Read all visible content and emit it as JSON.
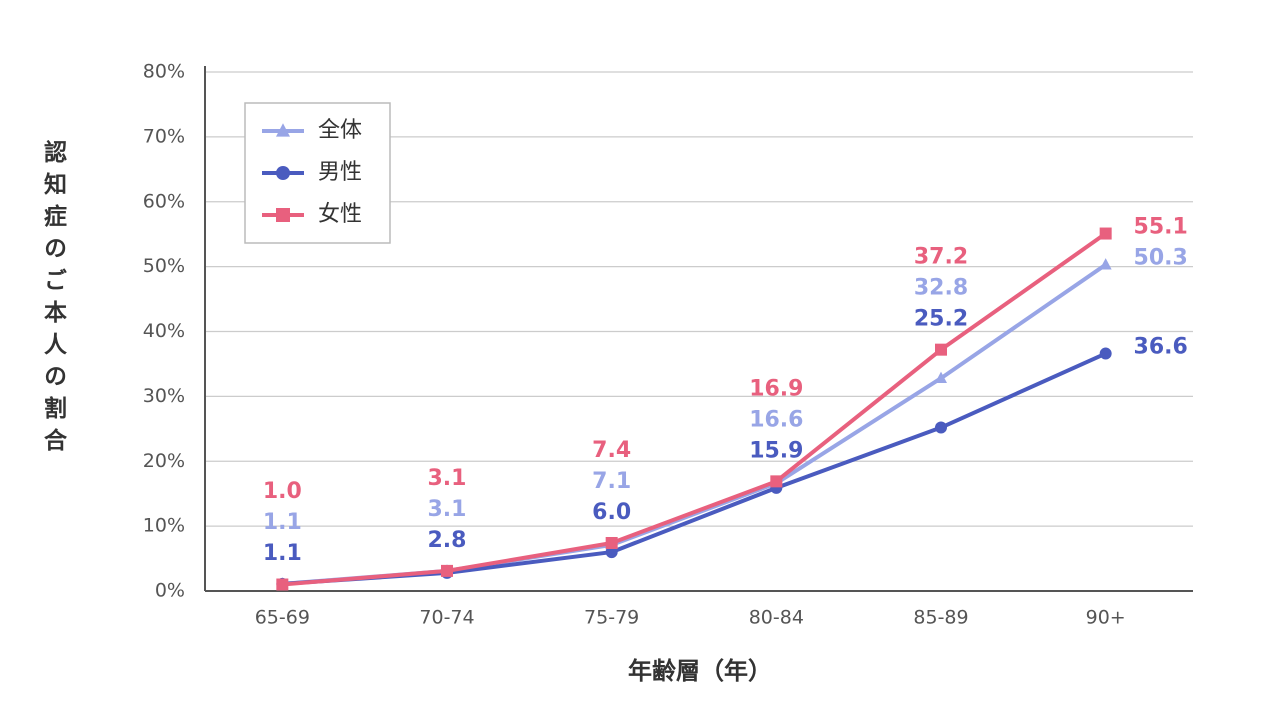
{
  "chart_data": {
    "type": "line",
    "y_label": "認知症のご本人の割合",
    "x_label": "年齢層（年）",
    "categories": [
      "65-69",
      "70-74",
      "75-79",
      "80-84",
      "85-89",
      "90+"
    ],
    "series": [
      {
        "name": "全体",
        "color": "#98a5e6",
        "marker": "triangle",
        "values": [
          1.1,
          3.1,
          7.1,
          16.6,
          32.8,
          50.3
        ],
        "value_labels": [
          "1.1",
          "3.1",
          "7.1",
          "16.6",
          "32.8",
          "50.3"
        ]
      },
      {
        "name": "男性",
        "color": "#4a5bbf",
        "marker": "circle",
        "values": [
          1.1,
          2.8,
          6.0,
          15.9,
          25.2,
          36.6
        ],
        "value_labels": [
          "1.1",
          "2.8",
          "6.0",
          "15.9",
          "25.2",
          "36.6"
        ]
      },
      {
        "name": "女性",
        "color": "#e8607e",
        "marker": "square",
        "values": [
          1.0,
          3.1,
          7.4,
          16.9,
          37.2,
          55.1
        ],
        "value_labels": [
          "1.0",
          "3.1",
          "7.4",
          "16.9",
          "37.2",
          "55.1"
        ]
      }
    ],
    "ylim": [
      0,
      80
    ],
    "yticks": [
      {
        "value": 0,
        "label": "0%"
      },
      {
        "value": 10,
        "label": "10%"
      },
      {
        "value": 20,
        "label": "20%"
      },
      {
        "value": 30,
        "label": "30%"
      },
      {
        "value": 40,
        "label": "40%"
      },
      {
        "value": 50,
        "label": "50%"
      },
      {
        "value": 60,
        "label": "60%"
      },
      {
        "value": 70,
        "label": "70%"
      },
      {
        "value": 80,
        "label": "80%"
      }
    ],
    "grid": true,
    "legend": "upper left"
  }
}
